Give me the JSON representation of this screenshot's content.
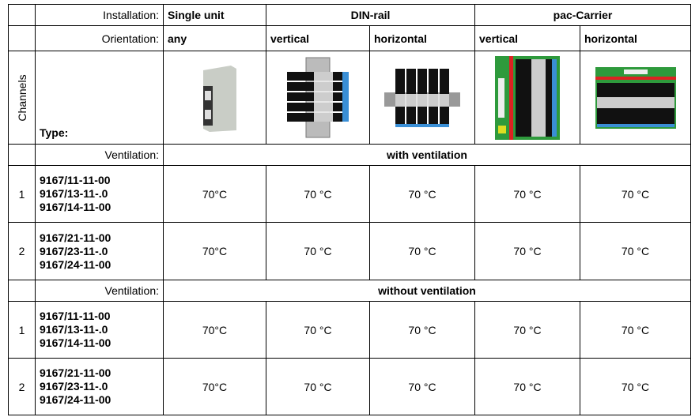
{
  "table": {
    "header": {
      "installation_label": "Installation:",
      "installations": [
        "Single unit",
        "DIN-rail",
        "pac-Carrier"
      ],
      "orientation_label": "Orientation:",
      "orientations": [
        "any",
        "vertical",
        "horizontal",
        "vertical",
        "horizontal"
      ],
      "channels_label": "Channels",
      "type_label": "Type:"
    },
    "sections": [
      {
        "label": "Ventilation:",
        "title": "with ventilation",
        "rows": [
          {
            "channels": 1,
            "types": [
              "9167/11-11-00",
              "9167/13-11-.0",
              "9167/14-11-00"
            ],
            "cells": [
              "70°C",
              "70 °C",
              "70 °C",
              "70 °C",
              "70 °C"
            ]
          },
          {
            "channels": 2,
            "types": [
              "9167/21-11-00",
              "9167/23-11-.0",
              "9167/24-11-00"
            ],
            "cells": [
              "70°C",
              "70 °C",
              "70 °C",
              "70 °C",
              "70 °C"
            ]
          }
        ]
      },
      {
        "label": "Ventilation:",
        "title": "without ventilation",
        "rows": [
          {
            "channels": 1,
            "types": [
              "9167/11-11-00",
              "9167/13-11-.0",
              "9167/14-11-00"
            ],
            "cells": [
              "70°C",
              "70 °C",
              "70 °C",
              "70 °C",
              "70 °C"
            ]
          },
          {
            "channels": 2,
            "types": [
              "9167/21-11-00",
              "9167/23-11-.0",
              "9167/24-11-00"
            ],
            "cells": [
              "70°C",
              "70 °C",
              "70 °C",
              "70 °C",
              "70 °C"
            ]
          }
        ]
      }
    ]
  }
}
